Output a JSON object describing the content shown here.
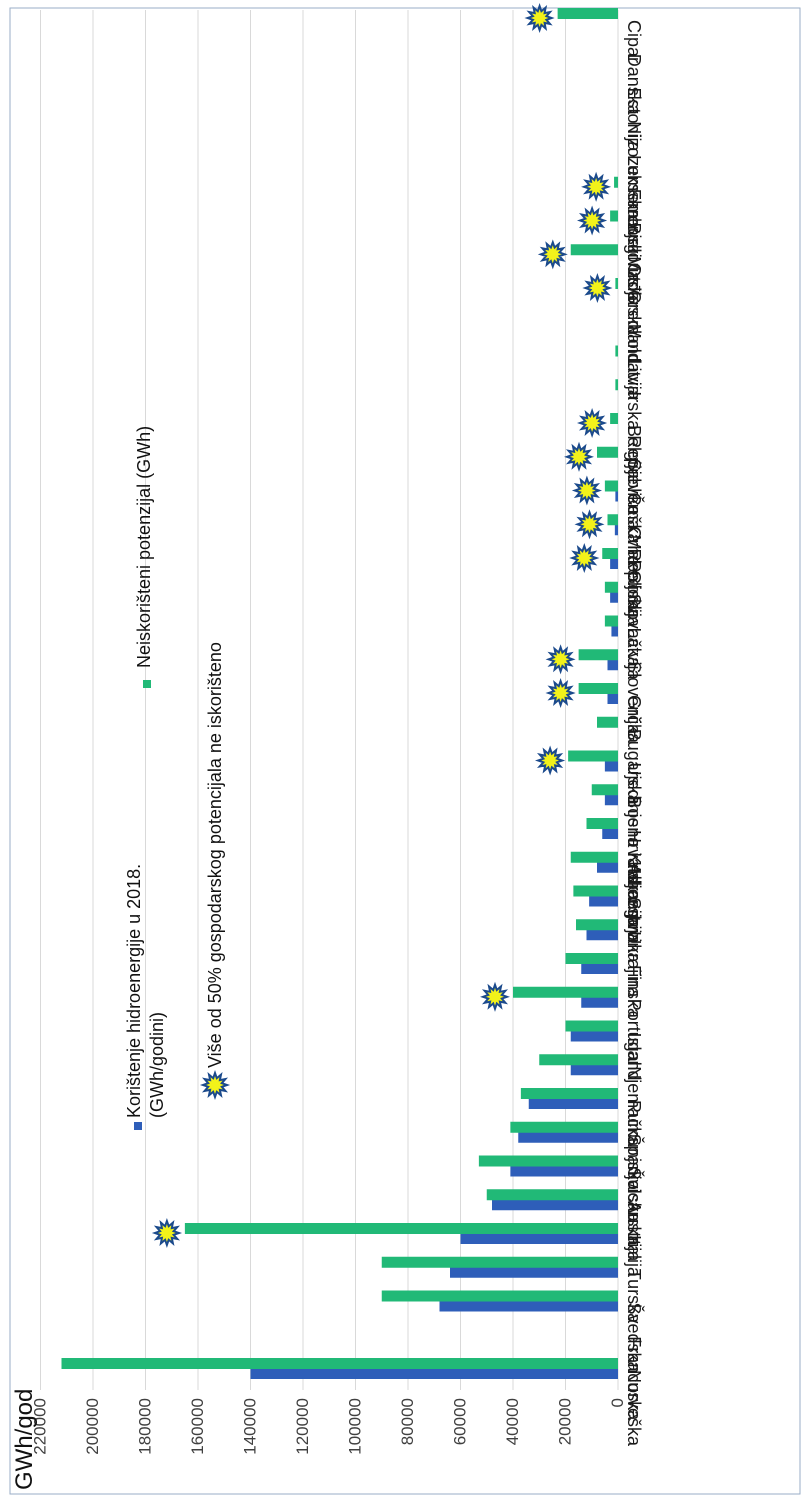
{
  "chart_data": {
    "type": "bar",
    "orientation": "rotated-90",
    "ylabel": "GWh/god",
    "ylim": [
      0,
      220000
    ],
    "yticks": [
      0,
      20000,
      40000,
      60000,
      80000,
      100000,
      120000,
      140000,
      160000,
      180000,
      200000,
      220000
    ],
    "grid": true,
    "legend_position": "inside-top",
    "colors": {
      "used": "#2e5eb9",
      "unused": "#21b977",
      "marker_fill": "#f2f21a",
      "marker_stroke": "#1b4a8c"
    },
    "categories": [
      "Norveška",
      "Francuska",
      "Švedska",
      "Turska",
      "Italija",
      "Austrija",
      "Švicarska",
      "Španjolska",
      "Rumunjska",
      "Njemačka",
      "Island",
      "Portugal",
      "Finska",
      "Ukrajina",
      "Srbija",
      "Albanija",
      "Hrvatska",
      "Bosna i Hercegovina",
      "Ujedinjeno Kraljevstvo",
      "Bugarska",
      "Grčka",
      "Slovenija",
      "Latvija",
      "Slovačka",
      "Poljska",
      "Crna Gora",
      "Češka Rep.",
      "Sjeverna Makedonija",
      "Belgija",
      "Irska Republika",
      "Litva",
      "Moldavija",
      "Grenland",
      "Mađarska",
      "Bjelorusija",
      "Farenski Otok",
      "Luksemburg",
      "Nizozemska",
      "Estonija",
      "Danska",
      "Cipar"
    ],
    "series": [
      {
        "name": "Korištenje hidroenergije u 2018. (GWh/godini)",
        "values": [
          140000,
          0,
          68000,
          64000,
          60000,
          48000,
          41000,
          38000,
          34000,
          18000,
          18000,
          14000,
          14000,
          12000,
          11000,
          8000,
          6000,
          5000,
          5000,
          0,
          4000,
          4000,
          2500,
          3000,
          3000,
          1200,
          1000,
          0,
          0,
          0,
          0,
          0,
          0,
          0,
          0,
          0,
          0,
          0,
          0,
          0,
          0
        ]
      },
      {
        "name": "Neiskorišteni potenzijal (GWh)",
        "values": [
          212000,
          0,
          90000,
          90000,
          165000,
          50000,
          53000,
          41000,
          37000,
          30000,
          20000,
          40000,
          20000,
          16000,
          17000,
          18000,
          12000,
          10000,
          19000,
          8000,
          15000,
          15000,
          5000,
          5000,
          6000,
          4000,
          5000,
          8000,
          3000,
          1000,
          1000,
          0,
          1000,
          18000,
          3000,
          1500,
          0,
          0,
          0,
          0,
          23000
        ]
      }
    ],
    "markers": {
      "name": "Više od 50% gospodarskog potencijala ne iskorišteno",
      "categories": [
        "Italija",
        "Portugal",
        "Ujedinjeno Kraljevstvo",
        "Grčka",
        "Slovenija",
        "Poljska",
        "Crna Gora",
        "Češka Rep.",
        "Sjeverna Makedonija",
        "Belgija",
        "Grenland",
        "Mađarska",
        "Bjelorusija",
        "Farenski Otok",
        "Cipar"
      ]
    }
  }
}
